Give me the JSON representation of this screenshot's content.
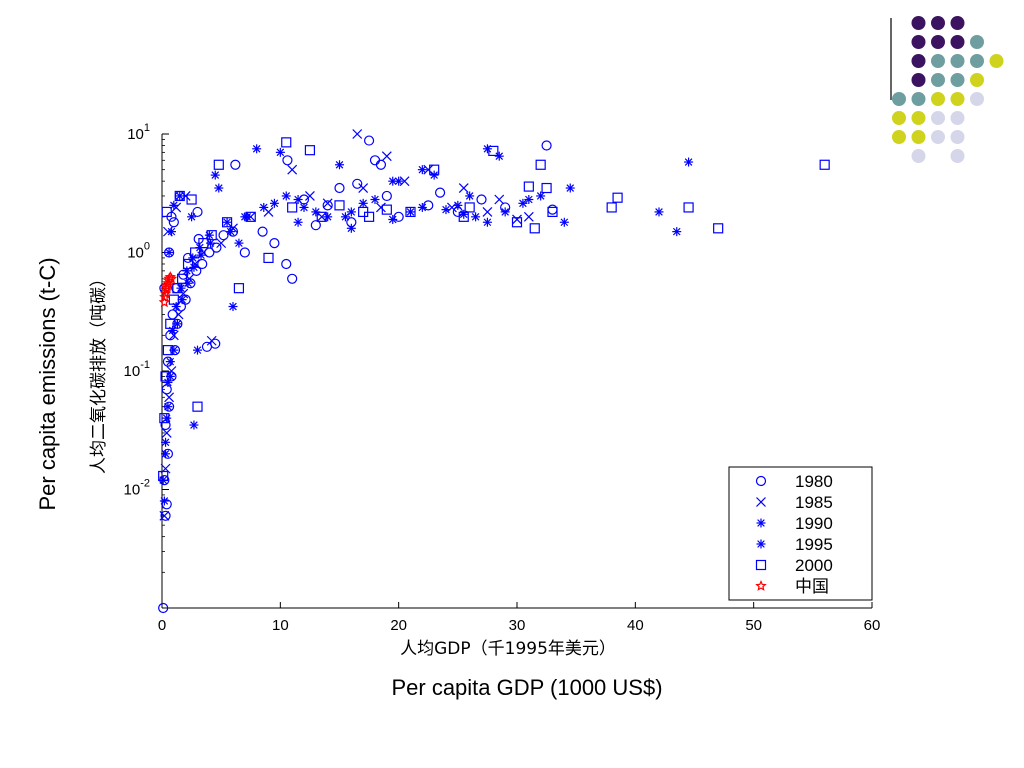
{
  "decoration": {
    "colors": {
      "dark": "#3c1360",
      "teal": "#6e9ea0",
      "yellow": "#cfd31d",
      "lavender": "#d6d6ea"
    }
  },
  "chart_data": {
    "type": "scatter",
    "xlabel_cn": "人均GDP（千1995年美元）",
    "ylabel_cn": "人均二氧化碳排放（吨碳）",
    "xlabel_en": "Per capita GDP (1000 US$)",
    "ylabel_en": "Per capita emissions (t-C)",
    "xlim": [
      0,
      60
    ],
    "ylim": [
      0.001,
      10
    ],
    "y_scale": "log",
    "x_ticks": [
      "0",
      "10",
      "20",
      "30",
      "40",
      "50",
      "60"
    ],
    "y_ticks": [
      {
        "base": "10",
        "exp": "1",
        "value": 10
      },
      {
        "base": "10",
        "exp": "0",
        "value": 1
      },
      {
        "base": "10",
        "exp": "-1",
        "value": 0.1
      },
      {
        "base": "10",
        "exp": "-2",
        "value": 0.01
      }
    ],
    "legend": {
      "placement": "bottom-right",
      "entries": [
        {
          "label": "1980",
          "marker": "circle"
        },
        {
          "label": "1985",
          "marker": "x"
        },
        {
          "label": "1990",
          "marker": "asterisk"
        },
        {
          "label": "1995",
          "marker": "asterisk"
        },
        {
          "label": "2000",
          "marker": "square"
        },
        {
          "label": "中国",
          "marker": "star"
        }
      ]
    },
    "series_color": "#0000ff",
    "china_color": "#ff0000",
    "series": [
      {
        "name": "1980",
        "marker": "circle",
        "points": [
          [
            0.1,
            0.001
          ],
          [
            0.3,
            0.006
          ],
          [
            0.4,
            0.0075
          ],
          [
            0.2,
            0.012
          ],
          [
            0.5,
            0.02
          ],
          [
            0.3,
            0.035
          ],
          [
            0.6,
            0.05
          ],
          [
            0.4,
            0.07
          ],
          [
            0.8,
            0.09
          ],
          [
            0.5,
            0.12
          ],
          [
            1.1,
            0.15
          ],
          [
            0.7,
            0.2
          ],
          [
            1.3,
            0.25
          ],
          [
            0.9,
            0.3
          ],
          [
            1.6,
            0.35
          ],
          [
            2.0,
            0.4
          ],
          [
            1.2,
            0.5
          ],
          [
            2.4,
            0.55
          ],
          [
            1.8,
            0.65
          ],
          [
            2.9,
            0.7
          ],
          [
            3.4,
            0.8
          ],
          [
            2.2,
            0.9
          ],
          [
            4.0,
            1.0
          ],
          [
            4.6,
            1.1
          ],
          [
            3.1,
            1.3
          ],
          [
            5.2,
            1.4
          ],
          [
            6.0,
            1.5
          ],
          [
            4.5,
            0.17
          ],
          [
            3.8,
            0.16
          ],
          [
            0.8,
            2.0
          ],
          [
            1.5,
            3.0
          ],
          [
            6.2,
            5.5
          ],
          [
            10.5,
            0.8
          ],
          [
            11.0,
            0.6
          ],
          [
            10.6,
            6.0
          ],
          [
            12.0,
            2.8
          ],
          [
            14.0,
            2.5
          ],
          [
            15.0,
            3.5
          ],
          [
            16.5,
            3.8
          ],
          [
            17.5,
            8.8
          ],
          [
            18.0,
            6.0
          ],
          [
            18.5,
            5.5
          ],
          [
            19.0,
            3.0
          ],
          [
            22.5,
            2.5
          ],
          [
            23.5,
            3.2
          ],
          [
            25.0,
            2.2
          ],
          [
            27.0,
            2.8
          ],
          [
            29.0,
            2.4
          ],
          [
            32.5,
            8.0
          ],
          [
            33.0,
            2.3
          ],
          [
            16.0,
            1.8
          ],
          [
            13.0,
            1.7
          ],
          [
            20.0,
            2.0
          ],
          [
            8.5,
            1.5
          ],
          [
            9.5,
            1.2
          ],
          [
            7.0,
            1.0
          ],
          [
            3.0,
            2.2
          ],
          [
            1.0,
            1.8
          ],
          [
            0.6,
            1.0
          ],
          [
            0.2,
            0.5
          ]
        ]
      },
      {
        "name": "1985",
        "marker": "x",
        "points": [
          [
            0.2,
            0.006
          ],
          [
            0.3,
            0.015
          ],
          [
            0.4,
            0.03
          ],
          [
            0.6,
            0.06
          ],
          [
            0.8,
            0.1
          ],
          [
            1.0,
            0.2
          ],
          [
            1.4,
            0.3
          ],
          [
            1.8,
            0.45
          ],
          [
            2.3,
            0.6
          ],
          [
            2.8,
            0.8
          ],
          [
            3.5,
            1.0
          ],
          [
            4.2,
            0.18
          ],
          [
            5.0,
            1.2
          ],
          [
            6.0,
            1.6
          ],
          [
            7.5,
            2.0
          ],
          [
            9.0,
            2.2
          ],
          [
            11.0,
            5.0
          ],
          [
            12.5,
            3.0
          ],
          [
            14.0,
            2.6
          ],
          [
            16.5,
            10.0
          ],
          [
            17.0,
            3.5
          ],
          [
            19.0,
            6.5
          ],
          [
            20.5,
            4.0
          ],
          [
            22.5,
            5.0
          ],
          [
            24.5,
            2.4
          ],
          [
            25.5,
            3.5
          ],
          [
            27.5,
            2.2
          ],
          [
            28.5,
            2.8
          ],
          [
            30.0,
            1.9
          ],
          [
            31.0,
            2.0
          ],
          [
            1.2,
            2.4
          ],
          [
            0.5,
            1.5
          ],
          [
            2.0,
            3.0
          ],
          [
            13.5,
            2.0
          ],
          [
            18.5,
            2.4
          ]
        ]
      },
      {
        "name": "1990",
        "marker": "asterisk",
        "points": [
          [
            0.2,
            0.008
          ],
          [
            0.3,
            0.02
          ],
          [
            0.4,
            0.04
          ],
          [
            0.5,
            0.08
          ],
          [
            0.7,
            0.12
          ],
          [
            0.9,
            0.22
          ],
          [
            1.2,
            0.35
          ],
          [
            1.6,
            0.5
          ],
          [
            2.1,
            0.7
          ],
          [
            2.6,
            0.9
          ],
          [
            3.2,
            1.1
          ],
          [
            4.0,
            1.4
          ],
          [
            4.5,
            4.5
          ],
          [
            5.5,
            1.8
          ],
          [
            6.0,
            0.35
          ],
          [
            7.0,
            2.0
          ],
          [
            8.0,
            7.5
          ],
          [
            9.5,
            2.6
          ],
          [
            10.5,
            3.0
          ],
          [
            12.0,
            2.4
          ],
          [
            14.0,
            2.0
          ],
          [
            15.0,
            5.5
          ],
          [
            16.0,
            2.2
          ],
          [
            18.0,
            2.8
          ],
          [
            20.0,
            4.0
          ],
          [
            22.0,
            5.0
          ],
          [
            24.0,
            2.3
          ],
          [
            26.0,
            3.0
          ],
          [
            27.5,
            1.8
          ],
          [
            28.5,
            6.5
          ],
          [
            30.5,
            2.6
          ],
          [
            32.0,
            3.0
          ],
          [
            34.0,
            1.8
          ],
          [
            2.7,
            0.035
          ],
          [
            3.0,
            0.15
          ],
          [
            1.5,
            3.0
          ],
          [
            0.8,
            1.5
          ],
          [
            11.5,
            1.8
          ],
          [
            19.5,
            1.9
          ],
          [
            25.5,
            2.1
          ]
        ]
      },
      {
        "name": "1995",
        "marker": "asterisk",
        "points": [
          [
            0.1,
            0.012
          ],
          [
            0.3,
            0.025
          ],
          [
            0.5,
            0.05
          ],
          [
            0.7,
            0.09
          ],
          [
            1.0,
            0.15
          ],
          [
            1.3,
            0.25
          ],
          [
            1.7,
            0.4
          ],
          [
            2.2,
            0.55
          ],
          [
            2.7,
            0.75
          ],
          [
            3.3,
            0.95
          ],
          [
            4.1,
            1.2
          ],
          [
            4.8,
            3.5
          ],
          [
            5.8,
            1.5
          ],
          [
            7.2,
            2.0
          ],
          [
            8.6,
            2.4
          ],
          [
            10.0,
            7.0
          ],
          [
            11.5,
            2.8
          ],
          [
            13.0,
            2.2
          ],
          [
            15.5,
            2.0
          ],
          [
            17.0,
            2.6
          ],
          [
            19.5,
            4.0
          ],
          [
            21.0,
            2.2
          ],
          [
            23.0,
            4.5
          ],
          [
            25.0,
            2.5
          ],
          [
            27.5,
            7.5
          ],
          [
            29.0,
            2.2
          ],
          [
            31.0,
            2.8
          ],
          [
            34.5,
            3.5
          ],
          [
            42.0,
            2.2
          ],
          [
            43.5,
            1.5
          ],
          [
            44.5,
            5.8
          ],
          [
            1.0,
            2.5
          ],
          [
            0.6,
            1.0
          ],
          [
            2.5,
            2.0
          ],
          [
            6.5,
            1.2
          ],
          [
            16.0,
            1.6
          ],
          [
            22.0,
            2.4
          ],
          [
            26.5,
            2.0
          ]
        ]
      },
      {
        "name": "2000",
        "marker": "square",
        "points": [
          [
            0.1,
            0.013
          ],
          [
            0.2,
            0.04
          ],
          [
            0.3,
            0.09
          ],
          [
            0.5,
            0.15
          ],
          [
            0.7,
            0.25
          ],
          [
            1.0,
            0.4
          ],
          [
            1.3,
            0.5
          ],
          [
            1.7,
            0.6
          ],
          [
            2.2,
            0.8
          ],
          [
            2.8,
            1.0
          ],
          [
            3.0,
            0.05
          ],
          [
            3.5,
            1.2
          ],
          [
            4.2,
            1.4
          ],
          [
            4.8,
            5.5
          ],
          [
            5.5,
            1.8
          ],
          [
            6.5,
            0.5
          ],
          [
            7.5,
            2.0
          ],
          [
            9.0,
            0.9
          ],
          [
            10.5,
            8.5
          ],
          [
            12.5,
            7.3
          ],
          [
            13.5,
            2.0
          ],
          [
            15.0,
            2.5
          ],
          [
            17.5,
            2.0
          ],
          [
            19.0,
            2.3
          ],
          [
            21.0,
            2.2
          ],
          [
            23.0,
            5.0
          ],
          [
            25.5,
            2.0
          ],
          [
            28.0,
            7.2
          ],
          [
            30.0,
            1.8
          ],
          [
            31.5,
            1.6
          ],
          [
            32.0,
            5.5
          ],
          [
            32.5,
            3.5
          ],
          [
            33.0,
            2.2
          ],
          [
            38.0,
            2.4
          ],
          [
            38.5,
            2.9
          ],
          [
            44.5,
            2.4
          ],
          [
            47.0,
            1.6
          ],
          [
            56.0,
            5.5
          ],
          [
            0.4,
            2.2
          ],
          [
            1.5,
            3.0
          ],
          [
            2.5,
            2.8
          ],
          [
            11.0,
            2.4
          ],
          [
            17.0,
            2.2
          ],
          [
            26.0,
            2.4
          ],
          [
            31.0,
            3.6
          ]
        ]
      },
      {
        "name": "中国",
        "marker": "star",
        "points": [
          [
            0.2,
            0.38
          ],
          [
            0.25,
            0.42
          ],
          [
            0.3,
            0.45
          ],
          [
            0.35,
            0.48
          ],
          [
            0.4,
            0.5
          ],
          [
            0.45,
            0.52
          ],
          [
            0.5,
            0.55
          ],
          [
            0.55,
            0.58
          ],
          [
            0.6,
            0.6
          ],
          [
            0.7,
            0.62
          ],
          [
            0.8,
            0.6
          ]
        ]
      }
    ]
  }
}
